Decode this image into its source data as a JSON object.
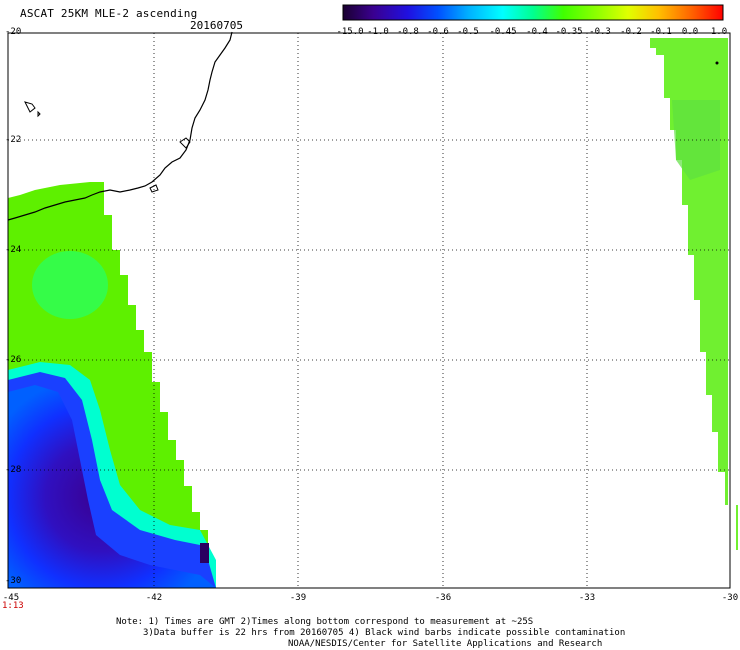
{
  "header": {
    "title": "ASCAT 25KM MLE-2 ascending",
    "date": "20160705"
  },
  "colorbar": {
    "labels": [
      "-15.0",
      "-1.0",
      "-0.8",
      "-0.6",
      "-0.5",
      "-0.45",
      "-0.4",
      "-0.35",
      "-0.3",
      "-0.2",
      "-0.1",
      "0.0",
      "1.0"
    ],
    "colors": [
      "#1a0030",
      "#3a0090",
      "#2010e0",
      "#0050ff",
      "#00b0ff",
      "#00ffff",
      "#00ff90",
      "#40ff00",
      "#90ff00",
      "#e0ff00",
      "#ffc000",
      "#ff6000",
      "#ff0000"
    ]
  },
  "axes": {
    "lat_labels": [
      "-20",
      "-22",
      "-24",
      "-26",
      "-28",
      "-30"
    ],
    "lon_labels": [
      "-45",
      "-42",
      "-39",
      "-36",
      "-33",
      "-30"
    ]
  },
  "footer": {
    "time": "1:13",
    "note_line1": "Note: 1) Times are GMT 2)Times along bottom correspond to measurement at ~25S",
    "note_line2": "3)Data buffer is 22 hrs from 20160705 4) Black wind barbs indicate possible contamination",
    "note_line3": "NOAA/NESDIS/Center for Satellite Applications and Research"
  }
}
